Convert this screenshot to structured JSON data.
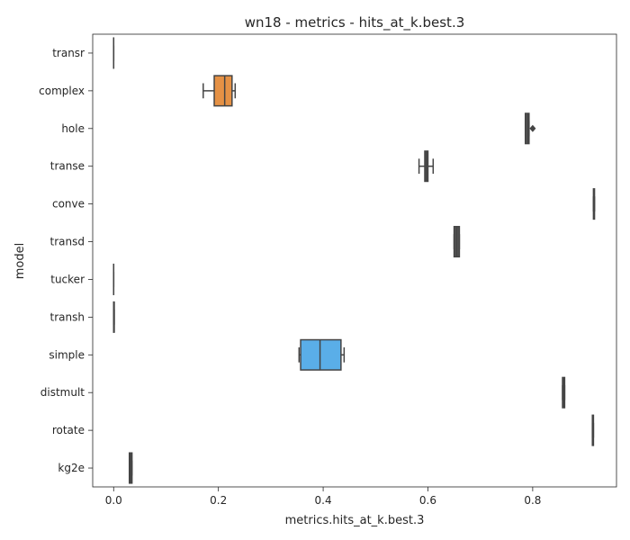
{
  "chart_data": {
    "type": "box",
    "orientation": "horizontal",
    "title": "wn18 - metrics - hits_at_k.best.3",
    "xlabel": "metrics.hits_at_k.best.3",
    "ylabel": "model",
    "xlim": [
      -0.04,
      0.96
    ],
    "xticks": [
      0.0,
      0.2,
      0.4,
      0.6,
      0.8
    ],
    "grid": false,
    "colors": {
      "stroke": "#444444",
      "complex_fill": "#e59145",
      "simple_fill": "#5aaee8",
      "default_fill": "#555555"
    },
    "categories": [
      "transr",
      "complex",
      "hole",
      "transe",
      "conve",
      "transd",
      "tucker",
      "transh",
      "simple",
      "distmult",
      "rotate",
      "kg2e"
    ],
    "boxes": [
      {
        "name": "transr",
        "min": 0.0,
        "q1": 0.0,
        "median": 0.0,
        "q3": 0.0,
        "max": 0.0,
        "outliers": []
      },
      {
        "name": "complex",
        "min": 0.171,
        "q1": 0.192,
        "median": 0.212,
        "q3": 0.226,
        "max": 0.232,
        "outliers": []
      },
      {
        "name": "hole",
        "min": 0.786,
        "q1": 0.786,
        "median": 0.791,
        "q3": 0.793,
        "max": 0.793,
        "outliers": [
          0.8
        ]
      },
      {
        "name": "transe",
        "min": 0.583,
        "q1": 0.594,
        "median": 0.597,
        "q3": 0.6,
        "max": 0.61,
        "outliers": []
      },
      {
        "name": "conve",
        "min": 0.916,
        "q1": 0.916,
        "median": 0.917,
        "q3": 0.918,
        "max": 0.918,
        "outliers": []
      },
      {
        "name": "transd",
        "min": 0.65,
        "q1": 0.65,
        "median": 0.655,
        "q3": 0.66,
        "max": 0.66,
        "outliers": []
      },
      {
        "name": "tucker",
        "min": 0.0,
        "q1": 0.0,
        "median": 0.0,
        "q3": 0.0,
        "max": 0.0,
        "outliers": []
      },
      {
        "name": "transh",
        "min": 0.0,
        "q1": 0.0,
        "median": 0.001,
        "q3": 0.001,
        "max": 0.001,
        "outliers": []
      },
      {
        "name": "simple",
        "min": 0.354,
        "q1": 0.357,
        "median": 0.394,
        "q3": 0.434,
        "max": 0.44,
        "outliers": []
      },
      {
        "name": "distmult",
        "min": 0.857,
        "q1": 0.857,
        "median": 0.859,
        "q3": 0.861,
        "max": 0.861,
        "outliers": []
      },
      {
        "name": "rotate",
        "min": 0.914,
        "q1": 0.914,
        "median": 0.915,
        "q3": 0.916,
        "max": 0.916,
        "outliers": []
      },
      {
        "name": "kg2e",
        "min": 0.03,
        "q1": 0.03,
        "median": 0.032,
        "q3": 0.035,
        "max": 0.035,
        "outliers": []
      }
    ]
  }
}
